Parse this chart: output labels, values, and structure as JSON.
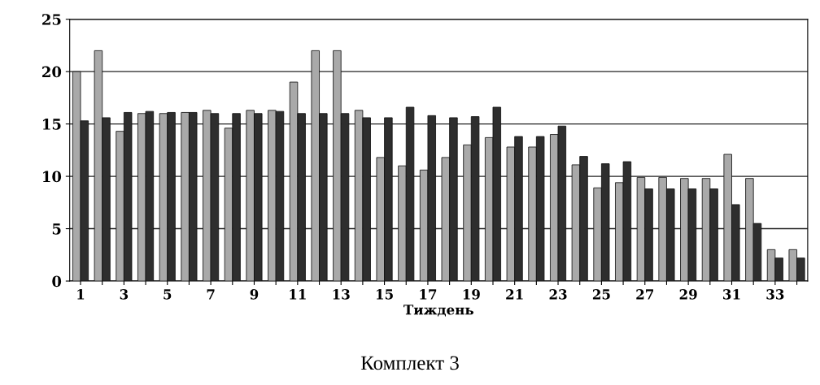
{
  "chart_data": {
    "type": "bar",
    "xlabel": "Тиждень",
    "annotations": [
      "Комплект 3"
    ],
    "categories": [
      "1",
      null,
      "3",
      null,
      "5",
      null,
      "7",
      null,
      "9",
      null,
      "11",
      null,
      "13",
      null,
      "15",
      null,
      "17",
      null,
      "19",
      null,
      "21",
      null,
      "23",
      null,
      "25",
      null,
      "27",
      null,
      "29",
      null,
      "31",
      null,
      "33",
      null
    ],
    "series": [
      {
        "color": "#a9a9a9",
        "values": [
          20,
          22,
          14.3,
          16,
          16,
          16.1,
          16.3,
          14.6,
          16.3,
          16.3,
          19,
          22,
          22,
          16.3,
          11.8,
          11,
          10.6,
          11.8,
          13,
          13.7,
          12.8,
          12.8,
          14,
          11.1,
          8.9,
          9.4,
          9.9,
          9.9,
          9.8,
          9.8,
          12.1,
          9.8,
          3,
          3
        ]
      },
      {
        "color": "#2e2e2e",
        "values": [
          15.3,
          15.6,
          16.1,
          16.2,
          16.1,
          16.1,
          16,
          16,
          16,
          16.2,
          16,
          16,
          16,
          15.6,
          15.6,
          16.6,
          15.8,
          15.6,
          15.7,
          16.6,
          13.8,
          13.8,
          14.8,
          11.9,
          11.2,
          11.4,
          8.8,
          8.8,
          8.8,
          8.8,
          7.3,
          5.5,
          2.2,
          2.2
        ]
      }
    ],
    "ylim": [
      0,
      25
    ],
    "yticks": [
      0,
      5,
      10,
      15,
      20,
      25
    ],
    "grid": "y"
  }
}
